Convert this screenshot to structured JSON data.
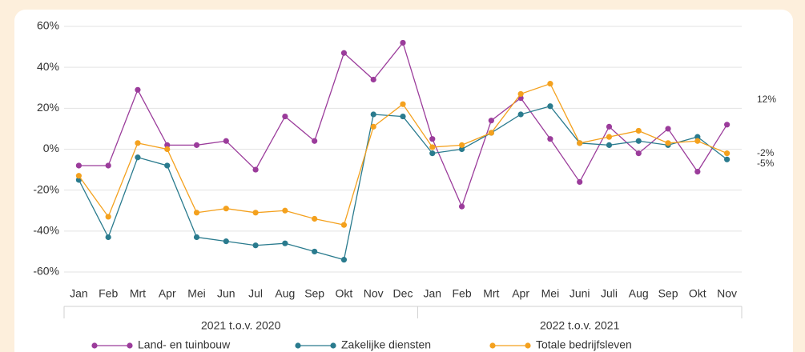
{
  "chart_data": {
    "type": "line",
    "groups": [
      {
        "label": "2021 t.o.v. 2020",
        "categories": [
          "Jan",
          "Feb",
          "Mrt",
          "Apr",
          "Mei",
          "Jun",
          "Jul",
          "Aug",
          "Sep",
          "Okt",
          "Nov",
          "Dec"
        ]
      },
      {
        "label": "2022 t.o.v. 2021",
        "categories": [
          "Jan",
          "Feb",
          "Mrt",
          "Apr",
          "Mei",
          "Juni",
          "Juli",
          "Aug",
          "Sep",
          "Okt",
          "Nov"
        ]
      }
    ],
    "series": [
      {
        "name": "Land- en tuinbouw",
        "color": "#9b3c9b",
        "end_label": "12%",
        "values": [
          -8,
          -8,
          29,
          2,
          2,
          4,
          -10,
          16,
          4,
          47,
          34,
          52,
          5,
          -28,
          14,
          25,
          5,
          -16,
          11,
          -2,
          10,
          -11,
          12
        ]
      },
      {
        "name": "Zakelijke diensten",
        "color": "#2a7b8e",
        "end_label": "-5%",
        "values": [
          -15,
          -43,
          -4,
          -8,
          -43,
          -45,
          -47,
          -46,
          -50,
          -54,
          17,
          16,
          -2,
          0,
          8,
          17,
          21,
          3,
          2,
          4,
          2,
          6,
          -5
        ]
      },
      {
        "name": "Totale bedrijfsleven",
        "color": "#f4a11e",
        "end_label": "-2%",
        "values": [
          -13,
          -33,
          3,
          0,
          -31,
          -29,
          -31,
          -30,
          -34,
          -37,
          11,
          22,
          1,
          2,
          8,
          27,
          32,
          3,
          6,
          9,
          3,
          4,
          -2
        ]
      }
    ],
    "ylim": [
      -60,
      60
    ],
    "yticks": [
      {
        "value": -60,
        "label": "-60%"
      },
      {
        "value": -40,
        "label": "-40%"
      },
      {
        "value": -20,
        "label": "-20%"
      },
      {
        "value": 0,
        "label": "0%"
      },
      {
        "value": 20,
        "label": "20%"
      },
      {
        "value": 40,
        "label": "40%"
      },
      {
        "value": 60,
        "label": "60%"
      }
    ],
    "grid": true
  }
}
